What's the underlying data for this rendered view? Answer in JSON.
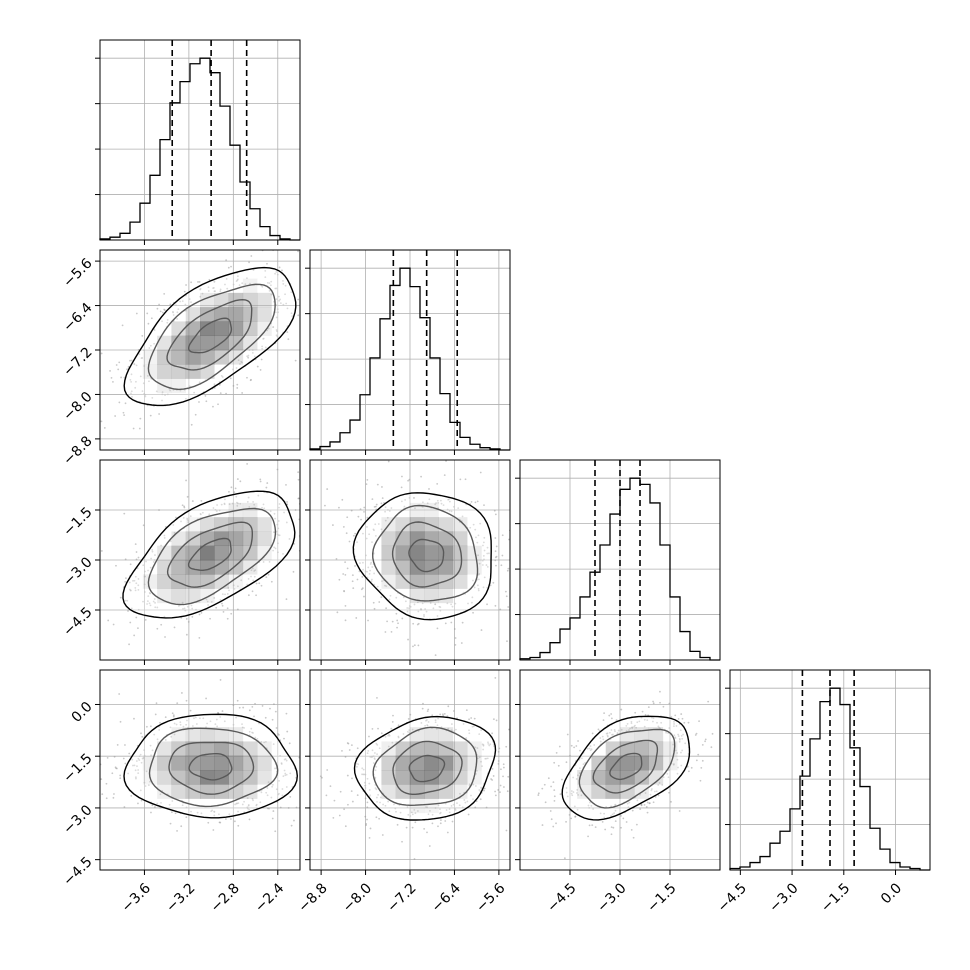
{
  "chart_data": {
    "type": "corner",
    "parameters": [
      {
        "range": [
          -4.0,
          -2.2
        ],
        "ticks": [
          -3.6,
          -3.2,
          -2.8,
          -2.4
        ],
        "tick_labels": [
          "−3.6",
          "−3.2",
          "−2.8",
          "−2.4"
        ],
        "quantiles": [
          -3.35,
          -3.0,
          -2.68
        ],
        "histogram": {
          "bin_start": -4.0,
          "bin_width": 0.09,
          "counts": [
            0.1,
            0.25,
            0.6,
            1.6,
            3.3,
            5.8,
            9.0,
            12.3,
            14.2,
            15.8,
            16.3,
            15.0,
            12.0,
            8.5,
            5.2,
            2.8,
            1.2,
            0.4,
            0.1,
            0
          ]
        }
      },
      {
        "range": [
          -9.0,
          -5.4
        ],
        "ticks": [
          -8.8,
          -8.0,
          -7.2,
          -6.4,
          -5.6
        ],
        "tick_labels": [
          "−8.8",
          "−8.0",
          "−7.2",
          "−6.4",
          "−5.6"
        ],
        "quantiles": [
          -7.5,
          -6.9,
          -6.35
        ],
        "histogram": {
          "bin_start": -9.0,
          "bin_width": 0.18,
          "counts": [
            0.1,
            0.3,
            0.7,
            1.5,
            2.6,
            4.8,
            8.0,
            11.4,
            14.3,
            15.8,
            14.2,
            11.5,
            8.0,
            4.9,
            2.4,
            1.1,
            0.5,
            0.2,
            0.1,
            0
          ]
        }
      },
      {
        "range": [
          -6.0,
          0.0
        ],
        "ticks": [
          -4.5,
          -3.0,
          -1.5
        ],
        "tick_labels": [
          "−4.5",
          "−3.0",
          "−1.5"
        ],
        "quantiles": [
          -3.75,
          -3.0,
          -2.4
        ],
        "histogram": {
          "bin_start": -6.0,
          "bin_width": 0.3,
          "counts": [
            0.1,
            0.2,
            0.6,
            1.4,
            2.5,
            3.4,
            5.1,
            7.1,
            9.3,
            11.8,
            13.8,
            14.7,
            14.2,
            12.7,
            9.3,
            5.1,
            2.3,
            0.7,
            0.2,
            0
          ]
        }
      },
      {
        "range": [
          -4.8,
          1.0
        ],
        "ticks": [
          -4.5,
          -3.0,
          -1.5,
          0.0
        ],
        "tick_labels": [
          "−4.5",
          "−3.0",
          "−1.5",
          "0.0"
        ],
        "quantiles": [
          -2.7,
          -1.9,
          -1.2
        ],
        "histogram": {
          "bin_start": -4.8,
          "bin_width": 0.29,
          "counts": [
            0.1,
            0.2,
            0.5,
            0.9,
            1.8,
            2.6,
            4.1,
            6.3,
            8.8,
            11.3,
            12.2,
            11.1,
            8.2,
            5.6,
            2.8,
            1.4,
            0.5,
            0.2,
            0.1,
            0
          ]
        }
      }
    ],
    "pairs": [
      {
        "x": 0,
        "y": 1,
        "center": [
          -3.0,
          -6.95
        ],
        "sigma": [
          0.38,
          0.62
        ],
        "rho": 0.62
      },
      {
        "x": 0,
        "y": 2,
        "center": [
          -3.0,
          -2.85
        ],
        "sigma": [
          0.38,
          0.95
        ],
        "rho": 0.55
      },
      {
        "x": 1,
        "y": 2,
        "center": [
          -6.9,
          -2.85
        ],
        "sigma": [
          0.62,
          0.95
        ],
        "rho": -0.08
      },
      {
        "x": 0,
        "y": 3,
        "center": [
          -3.0,
          -1.8
        ],
        "sigma": [
          0.38,
          0.75
        ],
        "rho": 0.0
      },
      {
        "x": 1,
        "y": 3,
        "center": [
          -6.9,
          -1.85
        ],
        "sigma": [
          0.62,
          0.75
        ],
        "rho": 0.15
      },
      {
        "x": 2,
        "y": 3,
        "center": [
          -2.8,
          -1.8
        ],
        "sigma": [
          0.95,
          0.75
        ],
        "rho": 0.45
      }
    ],
    "contour_levels_sigma": [
      0.5,
      1.0,
      1.5,
      2.0
    ],
    "grid": true,
    "legend": "none",
    "title": "",
    "colors": {
      "hist_line": "#000000",
      "contour": "#000000",
      "samples": "#9a9a9a",
      "density": "#000000",
      "grid": "#b0b0b0"
    }
  }
}
